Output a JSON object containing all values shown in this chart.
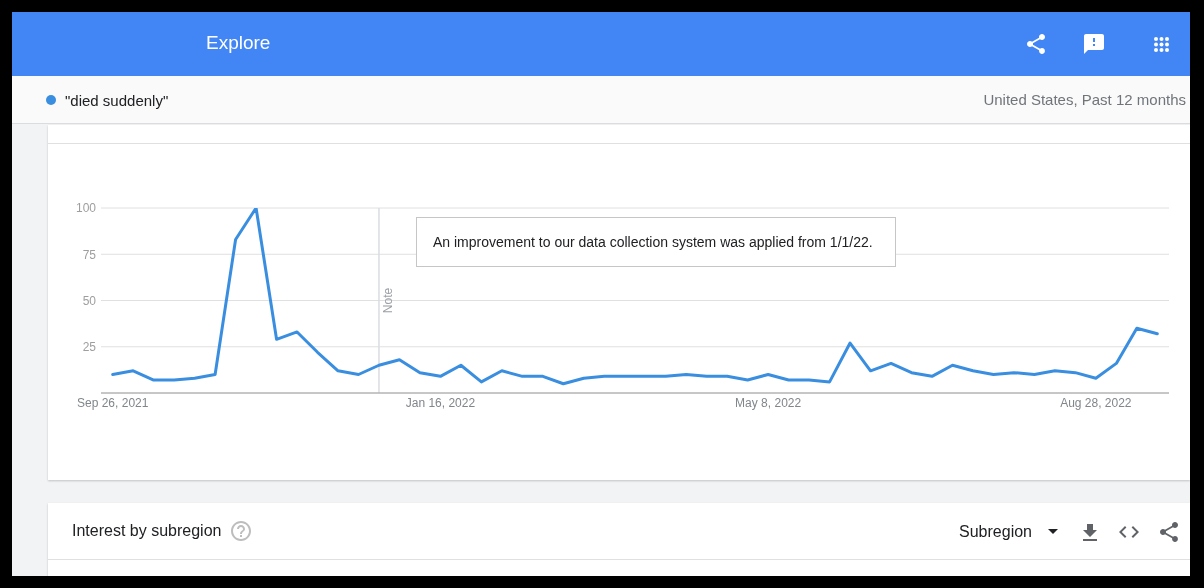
{
  "chart_data": {
    "type": "line",
    "title": "Explore",
    "subtitle": "United States, Past 12 months",
    "x": [
      "2021-09-26",
      "2021-10-03",
      "2021-10-10",
      "2021-10-17",
      "2021-10-24",
      "2021-10-31",
      "2021-11-07",
      "2021-11-14",
      "2021-11-21",
      "2021-11-28",
      "2021-12-05",
      "2021-12-12",
      "2021-12-19",
      "2021-12-26",
      "2022-01-02",
      "2022-01-09",
      "2022-01-16",
      "2022-01-23",
      "2022-01-30",
      "2022-02-06",
      "2022-02-13",
      "2022-02-20",
      "2022-02-27",
      "2022-03-06",
      "2022-03-13",
      "2022-03-20",
      "2022-03-27",
      "2022-04-03",
      "2022-04-10",
      "2022-04-17",
      "2022-04-24",
      "2022-05-01",
      "2022-05-08",
      "2022-05-15",
      "2022-05-22",
      "2022-05-29",
      "2022-06-05",
      "2022-06-12",
      "2022-06-19",
      "2022-06-26",
      "2022-07-03",
      "2022-07-10",
      "2022-07-17",
      "2022-07-24",
      "2022-07-31",
      "2022-08-07",
      "2022-08-14",
      "2022-08-21",
      "2022-08-28",
      "2022-09-04",
      "2022-09-11",
      "2022-09-18"
    ],
    "series": [
      {
        "name": "\"died suddenly\"",
        "color": "#3a8ee0",
        "values": [
          10,
          12,
          7,
          7,
          8,
          10,
          83,
          100,
          29,
          33,
          22,
          12,
          10,
          15,
          18,
          11,
          9,
          15,
          6,
          12,
          9,
          9,
          5,
          8,
          9,
          9,
          9,
          9,
          10,
          9,
          9,
          7,
          10,
          7,
          7,
          6,
          27,
          12,
          16,
          11,
          9,
          15,
          12,
          10,
          11,
          10,
          12,
          11,
          8,
          16,
          35,
          32
        ]
      }
    ],
    "xlim": [
      "2021-09-22",
      "2022-09-22"
    ],
    "xticks": [
      {
        "value": "2021-09-26",
        "label": "Sep 26, 2021"
      },
      {
        "value": "2022-01-16",
        "label": "Jan 16, 2022"
      },
      {
        "value": "2022-05-08",
        "label": "May 8, 2022"
      },
      {
        "value": "2022-08-28",
        "label": "Aug 28, 2022"
      }
    ],
    "ylim": [
      0,
      100
    ],
    "yticks": [
      25,
      50,
      75,
      100
    ],
    "grid": "y",
    "legend": "top left",
    "ref_lines": [
      {
        "axis": "x",
        "value": "2021-12-26",
        "label": "Note",
        "color": "#dadce0"
      }
    ],
    "annotations": [
      "An improvement to our data collection system was applied from 1/1/22.",
      "Interest by subregion",
      "Subregion"
    ]
  }
}
